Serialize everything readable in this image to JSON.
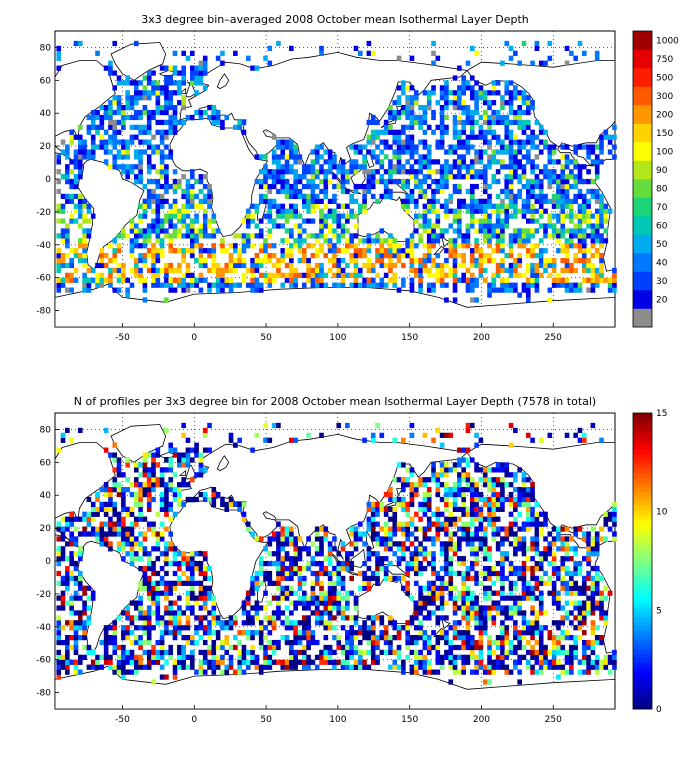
{
  "chart_data": [
    {
      "type": "heatmap",
      "title": "3x3 degree bin–averaged 2008 October mean Isothermal Layer Depth",
      "x_ticks": [
        "-50",
        "0",
        "50",
        "100",
        "150",
        "200",
        "250"
      ],
      "y_ticks": [
        "80",
        "60",
        "40",
        "20",
        "0",
        "-20",
        "-40",
        "-60",
        "-80"
      ],
      "xlim": [
        -97,
        293
      ],
      "ylim": [
        -90,
        90
      ],
      "grid": true,
      "colorbar": {
        "type": "discrete",
        "labels": [
          "20",
          "30",
          "40",
          "50",
          "60",
          "70",
          "80",
          "90",
          "100",
          "150",
          "200",
          "300",
          "500",
          "750",
          "1000"
        ],
        "colors": [
          "#8c8c8c",
          "#0000e6",
          "#0040ff",
          "#0078ff",
          "#00aaee",
          "#00c8b4",
          "#1ed278",
          "#64dc3c",
          "#b4e61e",
          "#ffff00",
          "#ffd200",
          "#ff9600",
          "#ff5a00",
          "#ff1e00",
          "#e60000",
          "#a00000"
        ]
      }
    },
    {
      "type": "heatmap",
      "title": "N of profiles per 3x3 degree bin for 2008 October mean Isothermal Layer Depth  (7578 in total)",
      "x_ticks": [
        "-50",
        "0",
        "50",
        "100",
        "150",
        "200",
        "250"
      ],
      "y_ticks": [
        "80",
        "60",
        "40",
        "20",
        "0",
        "-20",
        "-40",
        "-60",
        "-80"
      ],
      "xlim": [
        -97,
        293
      ],
      "ylim": [
        -90,
        90
      ],
      "grid": true,
      "colorbar": {
        "type": "continuous",
        "labels": [
          "0",
          "5",
          "10",
          "15"
        ],
        "range": [
          0,
          15
        ],
        "colormap": "jet"
      }
    }
  ]
}
